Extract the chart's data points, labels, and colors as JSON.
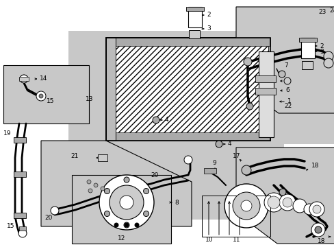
{
  "bg": "#ffffff",
  "lc": "#000000",
  "gray": "#c8c8c8",
  "dgray": "#888888",
  "fig_w": 4.89,
  "fig_h": 3.6,
  "dpi": 100
}
